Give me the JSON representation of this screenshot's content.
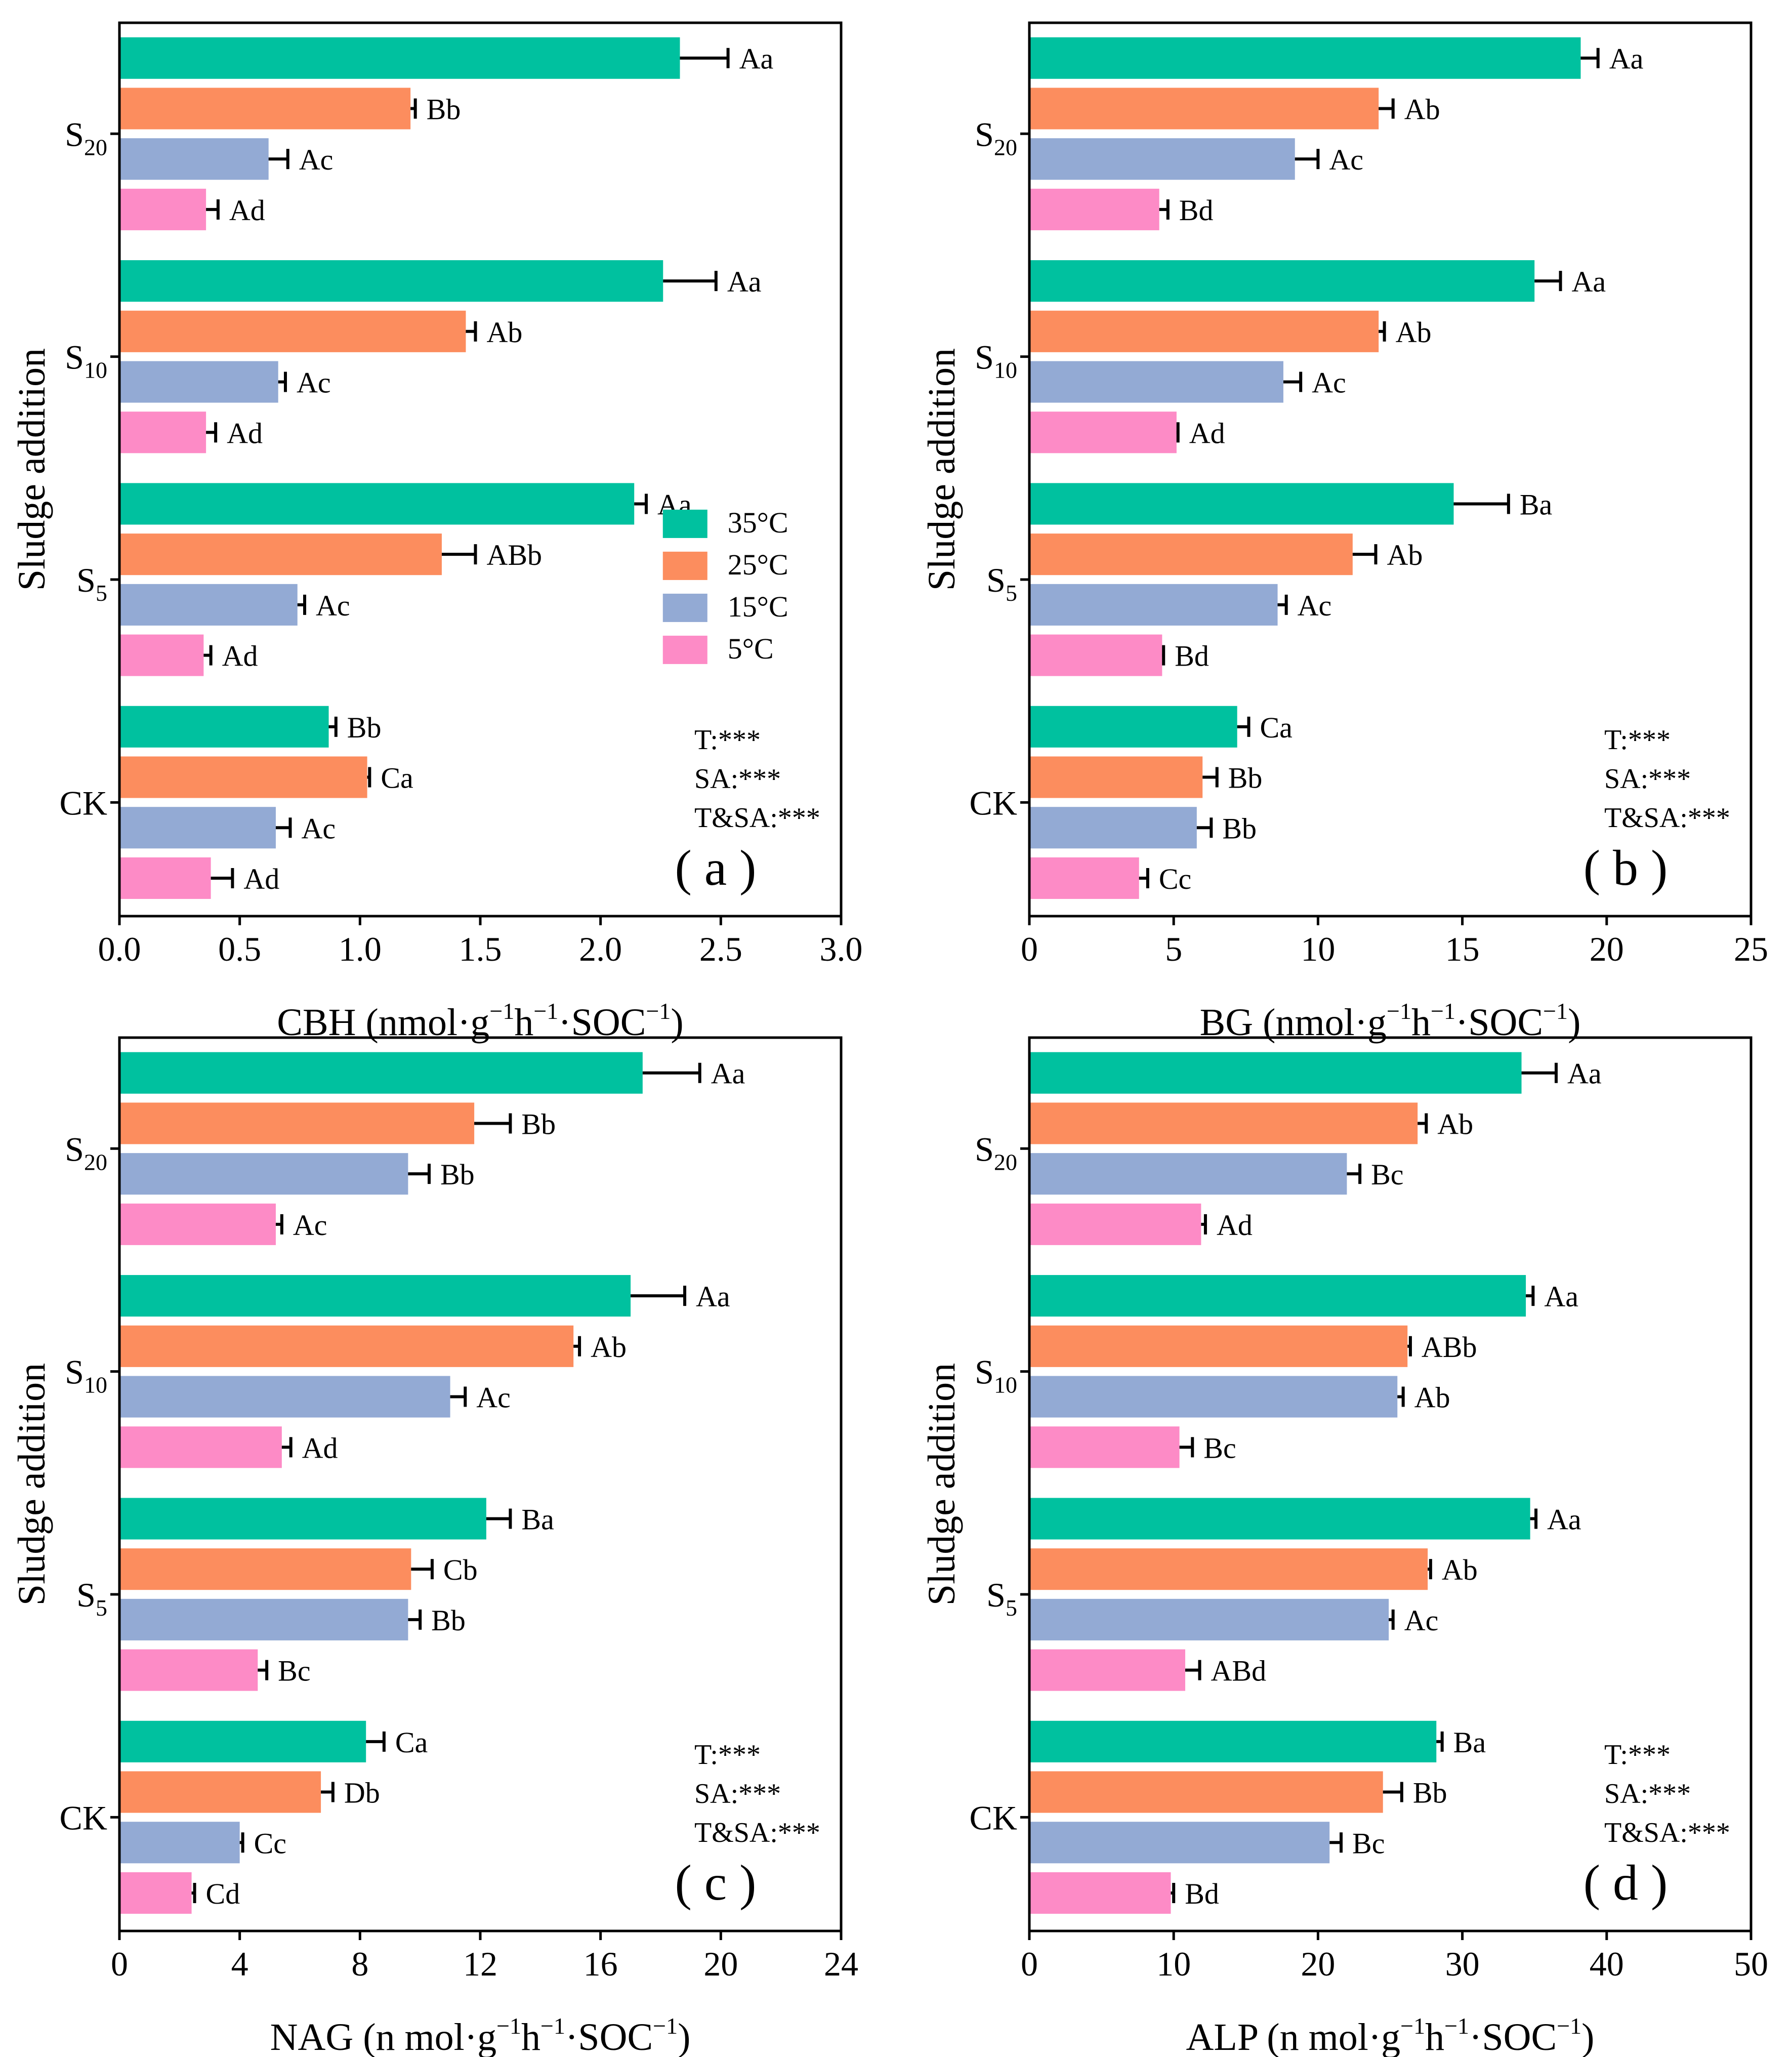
{
  "legend": [
    {
      "label": "35°C",
      "color": "#00c19f"
    },
    {
      "label": "25°C",
      "color": "#fc8d5e"
    },
    {
      "label": "15°C",
      "color": "#93aad4"
    },
    {
      "label": "5°C",
      "color": "#fd8bc6"
    }
  ],
  "chart_data": [
    {
      "id": "a",
      "type": "bar",
      "orientation": "horizontal",
      "panel_label": "( a )",
      "ylabel": "Sludge addition",
      "xlabel": {
        "prefix": "CBH (nmol·g",
        "sup1": "−1",
        "mid": "h",
        "sup2": "−1",
        "suffix": "·SOC",
        "sup3": "−1",
        "end": ")"
      },
      "xlim": [
        0,
        3.0
      ],
      "xticks": [
        "0.0",
        "0.5",
        "1.0",
        "1.5",
        "2.0",
        "2.5",
        "3.0"
      ],
      "groups": [
        {
          "main": "S",
          "sub": "20"
        },
        {
          "main": "S",
          "sub": "10"
        },
        {
          "main": "S",
          "sub": "5"
        },
        {
          "main": "CK",
          "sub": ""
        }
      ],
      "series_order": [
        "35°C",
        "25°C",
        "15°C",
        "5°C"
      ],
      "values": [
        [
          2.33,
          1.21,
          0.62,
          0.36
        ],
        [
          2.26,
          1.44,
          0.66,
          0.36
        ],
        [
          2.14,
          1.34,
          0.74,
          0.35
        ],
        [
          0.87,
          1.03,
          0.65,
          0.38
        ]
      ],
      "errors": [
        [
          0.2,
          0.02,
          0.08,
          0.05
        ],
        [
          0.22,
          0.04,
          0.03,
          0.04
        ],
        [
          0.05,
          0.14,
          0.03,
          0.03
        ],
        [
          0.03,
          0.01,
          0.06,
          0.09
        ]
      ],
      "labels": [
        [
          "Aa",
          "Bb",
          "Ac",
          "Ad"
        ],
        [
          "Aa",
          "Ab",
          "Ac",
          "Ad"
        ],
        [
          "Aa",
          "ABb",
          "Ac",
          "Ad"
        ],
        [
          "Bb",
          "Ca",
          "Ac",
          "Ad"
        ]
      ],
      "stats": [
        "T:***",
        "SA:***",
        "T&SA:***"
      ],
      "show_legend": true
    },
    {
      "id": "b",
      "type": "bar",
      "orientation": "horizontal",
      "panel_label": "( b )",
      "ylabel": "Sludge addition",
      "xlabel": {
        "prefix": "BG (nmol·g",
        "sup1": "−1",
        "mid": "h",
        "sup2": "−1",
        "suffix": "·SOC",
        "sup3": "−1",
        "end": ")"
      },
      "xlim": [
        0,
        25
      ],
      "xticks": [
        "0",
        "5",
        "10",
        "15",
        "20",
        "25"
      ],
      "groups": [
        {
          "main": "S",
          "sub": "20"
        },
        {
          "main": "S",
          "sub": "10"
        },
        {
          "main": "S",
          "sub": "5"
        },
        {
          "main": "CK",
          "sub": ""
        }
      ],
      "series_order": [
        "35°C",
        "25°C",
        "15°C",
        "5°C"
      ],
      "values": [
        [
          19.1,
          12.1,
          9.2,
          4.5
        ],
        [
          17.5,
          12.1,
          8.8,
          5.1
        ],
        [
          14.7,
          11.2,
          8.6,
          4.6
        ],
        [
          7.2,
          6.0,
          5.8,
          3.8
        ]
      ],
      "errors": [
        [
          0.6,
          0.5,
          0.8,
          0.3
        ],
        [
          0.9,
          0.2,
          0.6,
          0.05
        ],
        [
          1.9,
          0.8,
          0.3,
          0.05
        ],
        [
          0.4,
          0.5,
          0.5,
          0.3
        ]
      ],
      "labels": [
        [
          "Aa",
          "Ab",
          "Ac",
          "Bd"
        ],
        [
          "Aa",
          "Ab",
          "Ac",
          "Ad"
        ],
        [
          "Ba",
          "Ab",
          "Ac",
          "Bd"
        ],
        [
          "Ca",
          "Bb",
          "Bb",
          "Cc"
        ]
      ],
      "stats": [
        "T:***",
        "SA:***",
        "T&SA:***"
      ],
      "show_legend": false
    },
    {
      "id": "c",
      "type": "bar",
      "orientation": "horizontal",
      "panel_label": "( c )",
      "ylabel": "Sludge addition",
      "xlabel": {
        "prefix": "NAG (n mol·g",
        "sup1": "−1",
        "mid": "h",
        "sup2": "−1",
        "suffix": "·SOC",
        "sup3": "−1",
        "end": ")"
      },
      "xlim": [
        0,
        24
      ],
      "xticks": [
        "0",
        "4",
        "8",
        "12",
        "16",
        "20",
        "24"
      ],
      "groups": [
        {
          "main": "S",
          "sub": "20"
        },
        {
          "main": "S",
          "sub": "10"
        },
        {
          "main": "S",
          "sub": "5"
        },
        {
          "main": "CK",
          "sub": ""
        }
      ],
      "series_order": [
        "35°C",
        "25°C",
        "15°C",
        "5°C"
      ],
      "values": [
        [
          17.4,
          11.8,
          9.6,
          5.2
        ],
        [
          17.0,
          15.1,
          11.0,
          5.4
        ],
        [
          12.2,
          9.7,
          9.6,
          4.6
        ],
        [
          8.2,
          6.7,
          4.0,
          2.4
        ]
      ],
      "errors": [
        [
          1.9,
          1.2,
          0.7,
          0.2
        ],
        [
          1.8,
          0.2,
          0.5,
          0.3
        ],
        [
          0.8,
          0.7,
          0.4,
          0.3
        ],
        [
          0.6,
          0.4,
          0.1,
          0.1
        ]
      ],
      "labels": [
        [
          "Aa",
          "Bb",
          "Bb",
          "Ac"
        ],
        [
          "Aa",
          "Ab",
          "Ac",
          "Ad"
        ],
        [
          "Ba",
          "Cb",
          "Bb",
          "Bc"
        ],
        [
          "Ca",
          "Db",
          "Cc",
          "Cd"
        ]
      ],
      "stats": [
        "T:***",
        "SA:***",
        "T&SA:***"
      ],
      "show_legend": false
    },
    {
      "id": "d",
      "type": "bar",
      "orientation": "horizontal",
      "panel_label": "( d )",
      "ylabel": "Sludge addition",
      "xlabel": {
        "prefix": "ALP (n mol·g",
        "sup1": "−1",
        "mid": "h",
        "sup2": "−1",
        "suffix": "·SOC",
        "sup3": "−1",
        "end": ")"
      },
      "xlim": [
        0,
        50
      ],
      "xticks": [
        "0",
        "10",
        "20",
        "30",
        "40",
        "50"
      ],
      "groups": [
        {
          "main": "S",
          "sub": "20"
        },
        {
          "main": "S",
          "sub": "10"
        },
        {
          "main": "S",
          "sub": "5"
        },
        {
          "main": "CK",
          "sub": ""
        }
      ],
      "series_order": [
        "35°C",
        "25°C",
        "15°C",
        "5°C"
      ],
      "values": [
        [
          34.1,
          26.9,
          22.0,
          11.9
        ],
        [
          34.4,
          26.2,
          25.5,
          10.4
        ],
        [
          34.7,
          27.6,
          24.9,
          10.8
        ],
        [
          28.2,
          24.5,
          20.8,
          9.8
        ]
      ],
      "errors": [
        [
          2.4,
          0.6,
          0.9,
          0.3
        ],
        [
          0.5,
          0.2,
          0.4,
          0.9
        ],
        [
          0.4,
          0.2,
          0.3,
          1.0
        ],
        [
          0.4,
          1.3,
          0.8,
          0.2
        ]
      ],
      "labels": [
        [
          "Aa",
          "Ab",
          "Bc",
          "Ad"
        ],
        [
          "Aa",
          "ABb",
          "Ab",
          "Bc"
        ],
        [
          "Aa",
          "Ab",
          "Ac",
          "ABd"
        ],
        [
          "Ba",
          "Bb",
          "Bc",
          "Bd"
        ]
      ],
      "stats": [
        "T:***",
        "SA:***",
        "T&SA:***"
      ],
      "show_legend": false
    }
  ]
}
